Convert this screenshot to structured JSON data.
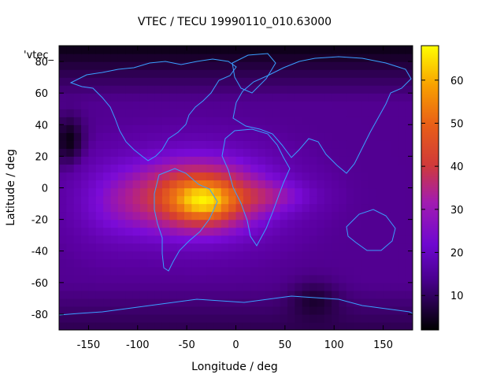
{
  "chart_data": {
    "type": "heatmap",
    "title": "VTEC / TECU 19990110_010.63000",
    "xlabel": "Longitude / deg",
    "ylabel": "Latitude / deg",
    "legend_key": "'vtec_",
    "xlim": [
      -180,
      180
    ],
    "ylim": [
      -90,
      90
    ],
    "x_ticks": [
      -150,
      -100,
      -50,
      0,
      50,
      100,
      150
    ],
    "y_ticks": [
      -80,
      -60,
      -40,
      -20,
      0,
      20,
      40,
      60,
      80
    ],
    "colorbar": {
      "range": [
        2,
        68
      ],
      "ticks": [
        10,
        20,
        30,
        40,
        50,
        60
      ]
    },
    "overlay": "coastlines",
    "colormap": [
      "#000000",
      "#5a00a0",
      "#7a0bd8",
      "#b01f8e",
      "#d8402a",
      "#f07a10",
      "#ffff00"
    ]
  }
}
